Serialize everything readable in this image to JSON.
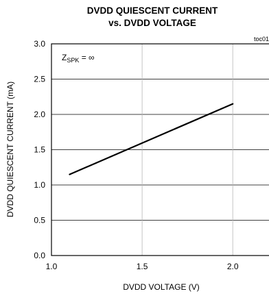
{
  "chart_data": {
    "type": "line",
    "title_line1": "DVDD QUIESCENT CURRENT",
    "title_line2": "vs. DVDD VOLTAGE",
    "xlabel": "DVDD VOLTAGE (V)",
    "ylabel": "DVDD QUIESCENT CURRENT (mA)",
    "xlim": [
      1.0,
      2.2
    ],
    "ylim": [
      0.0,
      3.0
    ],
    "xticks": [
      1.0,
      1.5,
      2.0
    ],
    "xtick_labels": [
      "1.0",
      "1.5",
      "2.0"
    ],
    "yticks": [
      0.0,
      0.5,
      1.0,
      1.5,
      2.0,
      2.5,
      3.0
    ],
    "ytick_labels": [
      "0.0",
      "0.5",
      "1.0",
      "1.5",
      "2.0",
      "2.5",
      "3.0"
    ],
    "grid": true,
    "figure_tag": "toc01",
    "annotation": {
      "base": "Z",
      "subscript": "SPK",
      "rest": " = ∞"
    },
    "series": [
      {
        "x": [
          1.1,
          2.0
        ],
        "y": [
          1.15,
          2.15
        ],
        "color": "#000000"
      }
    ]
  }
}
